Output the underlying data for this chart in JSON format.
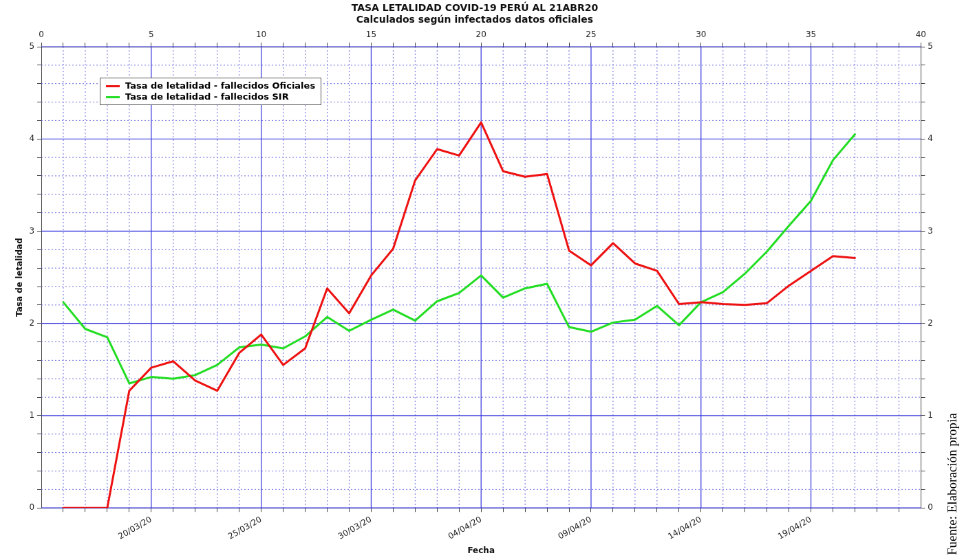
{
  "chart_data": {
    "type": "line",
    "title": "TASA LETALIDAD COVID-19 PERÚ AL 21ABR20",
    "subtitle": "Calculados según infectados datos oficiales",
    "xlabel": "Fecha",
    "ylabel": "Tasa de letalidad",
    "x": [
      "--03-16",
      "--03-17",
      "--03-18",
      "--03-19",
      "--03-20",
      "--03-21",
      "--03-22",
      "--03-23",
      "--03-24",
      "--03-25",
      "--03-26",
      "--03-27",
      "--03-28",
      "--03-29",
      "--03-30",
      "--03-31",
      "--04-01",
      "--04-02",
      "--04-03",
      "--04-04",
      "--04-05",
      "--04-06",
      "--04-07",
      "--04-08",
      "--04-09",
      "--04-10",
      "--04-11",
      "--04-12",
      "--04-13",
      "--04-14",
      "--04-15",
      "--04-16",
      "--04-17",
      "--04-18",
      "--04-19",
      "--04-20",
      "--04-21"
    ],
    "series": [
      {
        "name": "Tasa de letalidad - fallecidos Oficiales",
        "color": "#ee1111",
        "values": [
          0,
          0,
          0,
          1.27,
          1.52,
          1.59,
          1.38,
          1.27,
          1.68,
          1.88,
          1.55,
          1.73,
          2.38,
          2.11,
          2.52,
          2.81,
          3.55,
          3.89,
          3.82,
          4.18,
          3.65,
          3.59,
          3.62,
          2.79,
          2.63,
          2.87,
          2.65,
          2.57,
          2.21,
          2.23,
          2.21,
          2.2,
          2.22,
          2.41,
          2.57,
          2.73,
          2.71
        ]
      },
      {
        "name": "Tasa de letalidad - fallecidos SIR",
        "color": "#22dd22",
        "values": [
          2.23,
          1.94,
          1.85,
          1.35,
          1.42,
          1.4,
          1.44,
          1.55,
          1.74,
          1.77,
          1.73,
          1.86,
          2.07,
          1.92,
          2.04,
          2.15,
          2.03,
          2.24,
          2.33,
          2.52,
          2.28,
          2.38,
          2.43,
          1.96,
          1.91,
          2.01,
          2.04,
          2.19,
          1.98,
          2.23,
          2.34,
          2.54,
          2.78,
          3.06,
          3.33,
          3.77,
          4.05
        ]
      }
    ],
    "xlim": [
      "--03-15",
      "--04-24"
    ],
    "xticks": [
      {
        "value": "--03-16",
        "label": null
      },
      {
        "value": "--03-17",
        "label": null
      },
      {
        "value": "--03-18",
        "label": null
      },
      {
        "value": "--03-19",
        "label": null
      },
      {
        "value": "--03-20",
        "label": "20/03/20"
      },
      {
        "value": "--03-21",
        "label": null
      },
      {
        "value": "--03-22",
        "label": null
      },
      {
        "value": "--03-23",
        "label": null
      },
      {
        "value": "--03-24",
        "label": null
      },
      {
        "value": "--03-25",
        "label": "25/03/20"
      },
      {
        "value": "--03-26",
        "label": null
      },
      {
        "value": "--03-27",
        "label": null
      },
      {
        "value": "--03-28",
        "label": null
      },
      {
        "value": "--03-29",
        "label": null
      },
      {
        "value": "--03-30",
        "label": "30/03/20"
      },
      {
        "value": "--03-31",
        "label": null
      },
      {
        "value": "--04-01",
        "label": null
      },
      {
        "value": "--04-02",
        "label": null
      },
      {
        "value": "--04-03",
        "label": null
      },
      {
        "value": "--04-04",
        "label": "04/04/20"
      },
      {
        "value": "--04-05",
        "label": null
      },
      {
        "value": "--04-06",
        "label": null
      },
      {
        "value": "--04-07",
        "label": null
      },
      {
        "value": "--04-08",
        "label": null
      },
      {
        "value": "--04-09",
        "label": "09/04/20"
      },
      {
        "value": "--04-10",
        "label": null
      },
      {
        "value": "--04-11",
        "label": null
      },
      {
        "value": "--04-12",
        "label": null
      },
      {
        "value": "--04-13",
        "label": null
      },
      {
        "value": "--04-14",
        "label": "14/04/20"
      },
      {
        "value": "--04-15",
        "label": null
      },
      {
        "value": "--04-16",
        "label": null
      },
      {
        "value": "--04-17",
        "label": null
      },
      {
        "value": "--04-18",
        "label": null
      },
      {
        "value": "--04-19",
        "label": "19/04/20"
      },
      {
        "value": "--04-20",
        "label": null
      },
      {
        "value": "--04-21",
        "label": null
      },
      {
        "value": "--04-22",
        "label": null
      },
      {
        "value": "--04-23",
        "label": null
      }
    ],
    "x2lim": [
      0,
      40
    ],
    "x2ticks": [
      0,
      {
        "value": 1,
        "label": null
      },
      {
        "value": 2,
        "label": null
      },
      {
        "value": 3,
        "label": null
      },
      {
        "value": 4,
        "label": null
      },
      5,
      {
        "value": 6,
        "label": null
      },
      {
        "value": 7,
        "label": null
      },
      {
        "value": 8,
        "label": null
      },
      {
        "value": 9,
        "label": null
      },
      10,
      {
        "value": 11,
        "label": null
      },
      {
        "value": 12,
        "label": null
      },
      {
        "value": 13,
        "label": null
      },
      {
        "value": 14,
        "label": null
      },
      15,
      {
        "value": 16,
        "label": null
      },
      {
        "value": 17,
        "label": null
      },
      {
        "value": 18,
        "label": null
      },
      {
        "value": 19,
        "label": null
      },
      20,
      {
        "value": 21,
        "label": null
      },
      {
        "value": 22,
        "label": null
      },
      {
        "value": 23,
        "label": null
      },
      {
        "value": 24,
        "label": null
      },
      25,
      {
        "value": 26,
        "label": null
      },
      {
        "value": 27,
        "label": null
      },
      {
        "value": 28,
        "label": null
      },
      {
        "value": 29,
        "label": null
      },
      30,
      {
        "value": 31,
        "label": null
      },
      {
        "value": 32,
        "label": null
      },
      {
        "value": 33,
        "label": null
      },
      {
        "value": 34,
        "label": null
      },
      35,
      {
        "value": 36,
        "label": null
      },
      {
        "value": 37,
        "label": null
      },
      {
        "value": 38,
        "label": null
      },
      {
        "value": 39,
        "label": null
      },
      40
    ],
    "ylim": [
      0,
      5
    ],
    "yticks": [
      0,
      {
        "value": 0.2,
        "label": null
      },
      {
        "value": 0.4,
        "label": null
      },
      {
        "value": 0.6,
        "label": null
      },
      {
        "value": 0.8,
        "label": null
      },
      1,
      {
        "value": 1.2,
        "label": null
      },
      {
        "value": 1.4,
        "label": null
      },
      {
        "value": 1.6,
        "label": null
      },
      {
        "value": 1.8,
        "label": null
      },
      2,
      {
        "value": 2.2,
        "label": null
      },
      {
        "value": 2.4,
        "label": null
      },
      {
        "value": 2.6,
        "label": null
      },
      {
        "value": 2.8,
        "label": null
      },
      3,
      {
        "value": 3.2,
        "label": null
      },
      {
        "value": 3.4,
        "label": null
      },
      {
        "value": 3.6,
        "label": null
      },
      {
        "value": 3.8,
        "label": null
      },
      4,
      {
        "value": 4.2,
        "label": null
      },
      {
        "value": 4.4,
        "label": null
      },
      {
        "value": 4.6,
        "label": null
      },
      {
        "value": 4.8,
        "label": null
      },
      5
    ],
    "y2lim": [
      0,
      5
    ],
    "y2ticks": [
      0,
      {
        "value": 0.2,
        "label": null
      },
      {
        "value": 0.4,
        "label": null
      },
      {
        "value": 0.6,
        "label": null
      },
      {
        "value": 0.8,
        "label": null
      },
      1,
      {
        "value": 1.2,
        "label": null
      },
      {
        "value": 1.4,
        "label": null
      },
      {
        "value": 1.6,
        "label": null
      },
      {
        "value": 1.8,
        "label": null
      },
      2,
      {
        "value": 2.2,
        "label": null
      },
      {
        "value": 2.4,
        "label": null
      },
      {
        "value": 2.6,
        "label": null
      },
      {
        "value": 2.8,
        "label": null
      },
      3,
      {
        "value": 3.2,
        "label": null
      },
      {
        "value": 3.4,
        "label": null
      },
      {
        "value": 3.6,
        "label": null
      },
      {
        "value": 3.8,
        "label": null
      },
      4,
      {
        "value": 4.2,
        "label": null
      },
      {
        "value": 4.4,
        "label": null
      },
      {
        "value": 4.6,
        "label": null
      },
      {
        "value": 4.8,
        "label": null
      },
      5
    ],
    "grid": true,
    "legend": "top left",
    "marker": "none",
    "line_style": "solid",
    "annotations": [
      "Fuente: Elaboración propia"
    ]
  }
}
